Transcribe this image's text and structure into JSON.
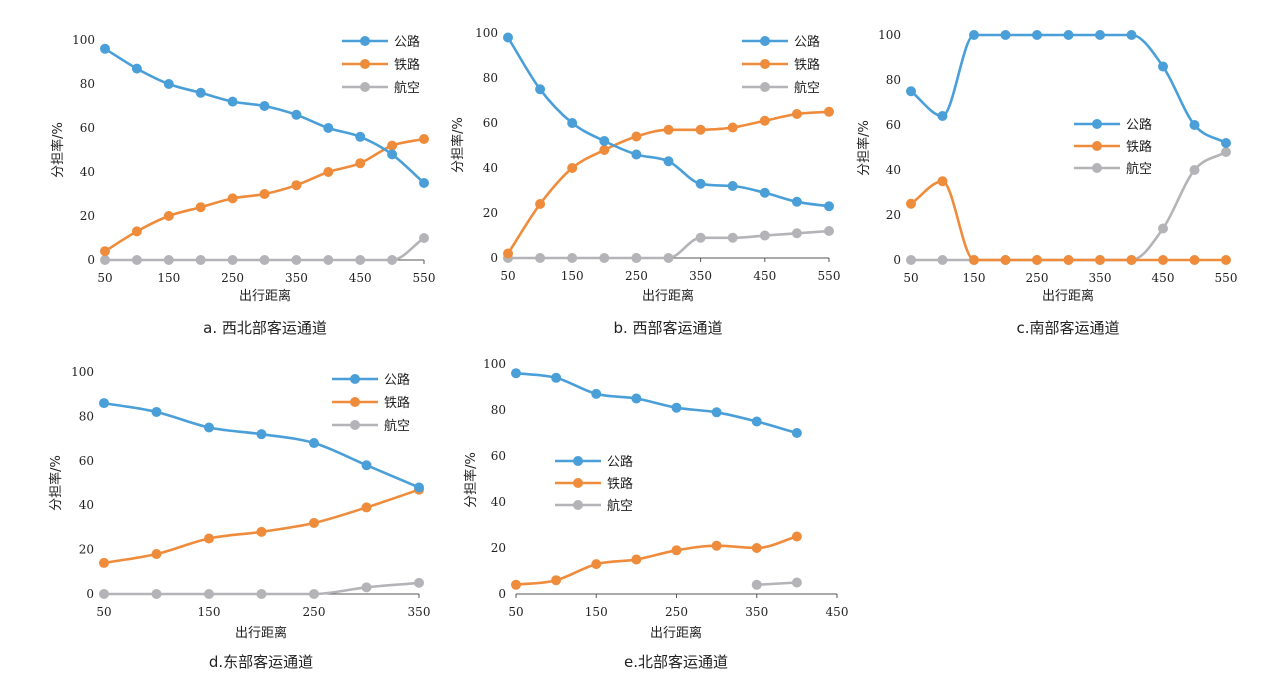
{
  "colors": {
    "公路": "#4a9fd8",
    "铁路": "#ee8c3c",
    "航空": "#b4b4b8",
    "axis": "#555555"
  },
  "chart_data": [
    {
      "type": "line",
      "caption": "a. 西北部客运通道",
      "xlabel": "出行距离",
      "ylabel": "分担率/%",
      "x": [
        50,
        100,
        150,
        200,
        250,
        300,
        350,
        400,
        450,
        500,
        550
      ],
      "xticks": [
        50,
        150,
        250,
        350,
        450,
        550
      ],
      "ylim": [
        0,
        100
      ],
      "yticks": [
        0,
        20,
        40,
        60,
        80,
        100
      ],
      "legend": "top-right",
      "series": [
        {
          "name": "公路",
          "values": [
            96,
            87,
            80,
            76,
            72,
            70,
            66,
            60,
            56,
            48,
            35
          ]
        },
        {
          "name": "铁路",
          "values": [
            4,
            13,
            20,
            24,
            28,
            30,
            34,
            40,
            44,
            52,
            55
          ]
        },
        {
          "name": "航空",
          "values": [
            0,
            0,
            0,
            0,
            0,
            0,
            0,
            0,
            0,
            0,
            10
          ]
        }
      ]
    },
    {
      "type": "line",
      "caption": "b. 西部客运通道",
      "xlabel": "出行距离",
      "ylabel": "分担率/%",
      "x": [
        50,
        100,
        150,
        200,
        250,
        300,
        350,
        400,
        450,
        500,
        550
      ],
      "xticks": [
        50,
        150,
        250,
        350,
        450,
        550
      ],
      "ylim": [
        0,
        100
      ],
      "yticks": [
        0,
        20,
        40,
        60,
        80,
        100
      ],
      "legend": "top-right",
      "series": [
        {
          "name": "公路",
          "values": [
            98,
            75,
            60,
            52,
            46,
            43,
            33,
            32,
            29,
            25,
            23
          ]
        },
        {
          "name": "铁路",
          "values": [
            2,
            24,
            40,
            48,
            54,
            57,
            57,
            58,
            61,
            64,
            65
          ]
        },
        {
          "name": "航空",
          "values": [
            0,
            0,
            0,
            0,
            0,
            0,
            9,
            9,
            10,
            11,
            12
          ]
        }
      ]
    },
    {
      "type": "line",
      "caption": "c.南部客运通道",
      "xlabel": "出行距离",
      "ylabel": "分担率/%",
      "x": [
        50,
        100,
        150,
        200,
        250,
        300,
        350,
        400,
        450,
        500,
        550
      ],
      "xticks": [
        50,
        150,
        250,
        350,
        450,
        550
      ],
      "ylim": [
        0,
        100
      ],
      "yticks": [
        0,
        20,
        40,
        60,
        80,
        100
      ],
      "legend": "right",
      "series": [
        {
          "name": "公路",
          "values": [
            75,
            64,
            100,
            100,
            100,
            100,
            100,
            100,
            86,
            60,
            52
          ]
        },
        {
          "name": "铁路",
          "values": [
            25,
            35,
            0,
            0,
            0,
            0,
            0,
            0,
            0,
            0,
            0
          ]
        },
        {
          "name": "航空",
          "values": [
            0,
            0,
            0,
            0,
            0,
            0,
            0,
            0,
            14,
            40,
            48
          ]
        }
      ]
    },
    {
      "type": "line",
      "caption": "d.东部客运通道",
      "xlabel": "出行距离",
      "ylabel": "分担率/%",
      "x": [
        50,
        100,
        150,
        200,
        250,
        300,
        350
      ],
      "xticks": [
        50,
        150,
        250,
        350
      ],
      "ylim": [
        0,
        100
      ],
      "yticks": [
        0,
        20,
        40,
        60,
        80,
        100
      ],
      "legend": "top-right",
      "series": [
        {
          "name": "公路",
          "values": [
            86,
            82,
            75,
            72,
            68,
            58,
            48
          ]
        },
        {
          "name": "铁路",
          "values": [
            14,
            18,
            25,
            28,
            32,
            39,
            47
          ]
        },
        {
          "name": "航空",
          "values": [
            0,
            0,
            0,
            0,
            0,
            3,
            5
          ]
        }
      ]
    },
    {
      "type": "line",
      "caption": "e.北部客运通道",
      "xlabel": "出行距离",
      "ylabel": "分担率/%",
      "x": [
        50,
        100,
        150,
        200,
        250,
        300,
        350,
        400
      ],
      "xticks": [
        50,
        150,
        250,
        350,
        450
      ],
      "xlim": [
        50,
        450
      ],
      "ylim": [
        0,
        100
      ],
      "yticks": [
        0,
        20,
        40,
        60,
        80,
        100
      ],
      "legend": "left",
      "series": [
        {
          "name": "公路",
          "values": [
            96,
            94,
            87,
            85,
            81,
            79,
            75,
            70
          ]
        },
        {
          "name": "铁路",
          "values": [
            4,
            6,
            13,
            15,
            19,
            21,
            20,
            25
          ]
        },
        {
          "name": "航空",
          "values": [
            null,
            null,
            null,
            null,
            null,
            null,
            4,
            5
          ]
        }
      ]
    }
  ]
}
